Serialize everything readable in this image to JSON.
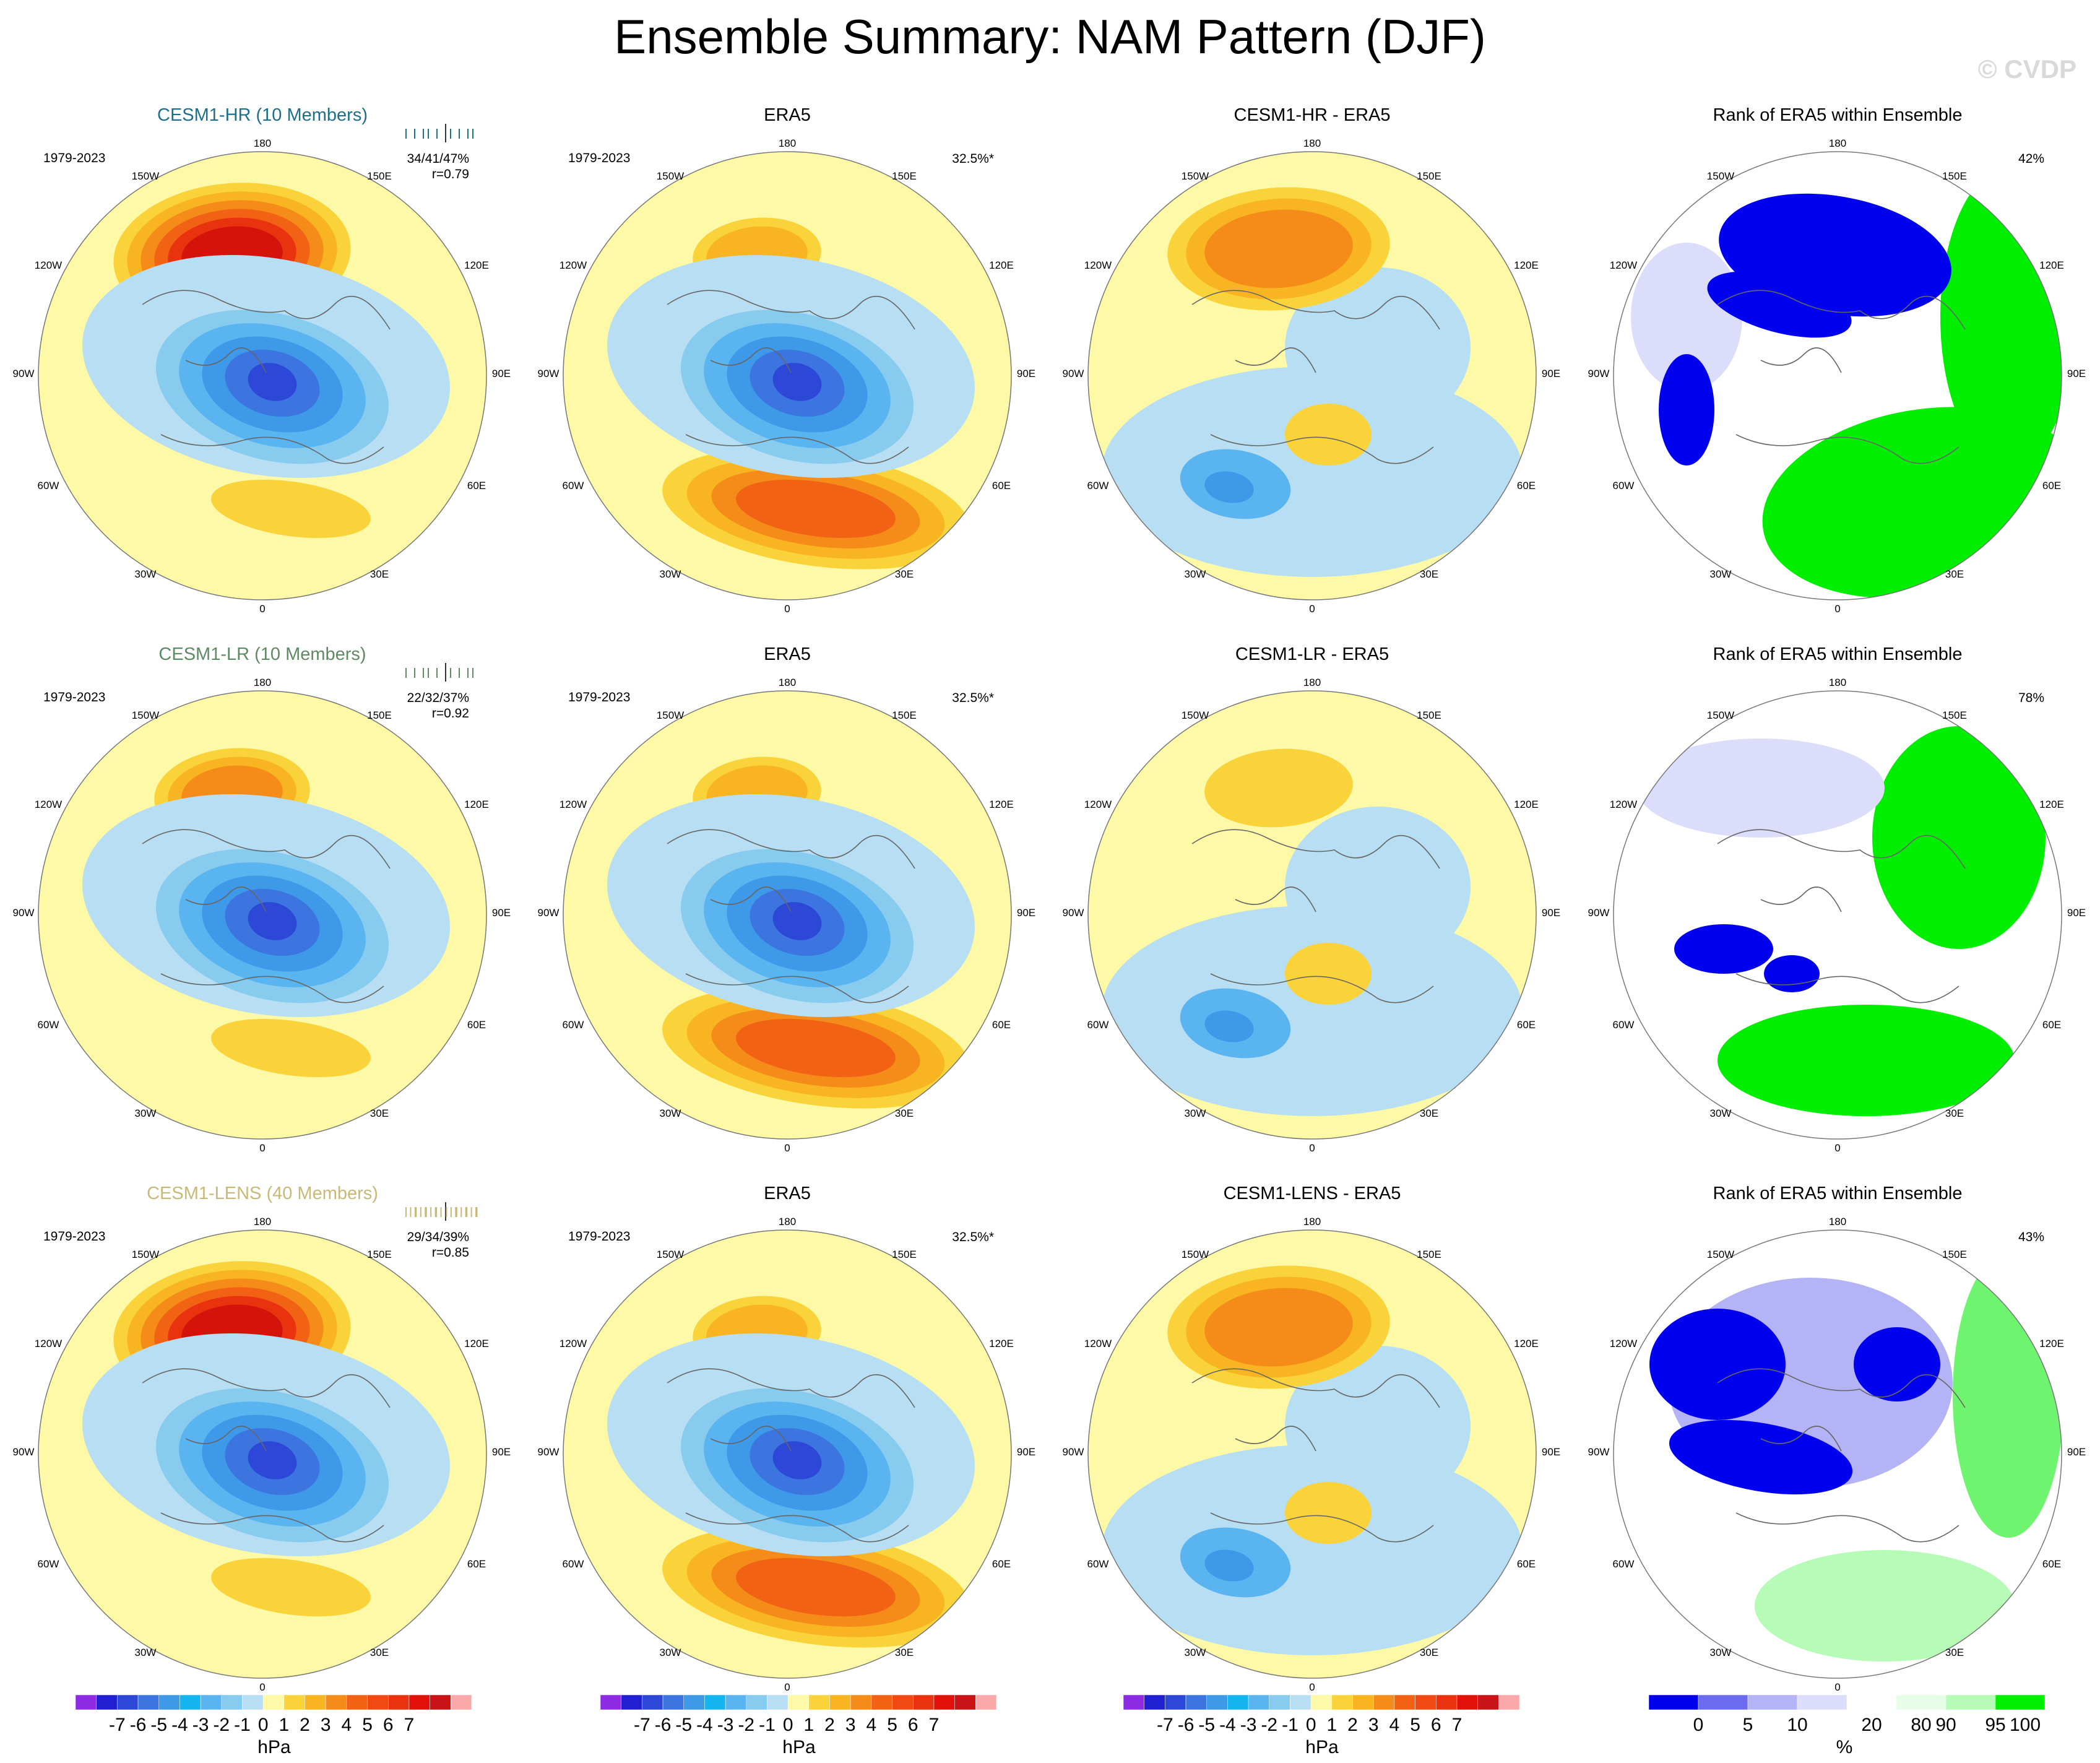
{
  "title": "Ensemble Summary: NAM Pattern (DJF)",
  "watermark": "© CVDP",
  "colors": {
    "bg_yellow": "#fdf9a6",
    "light_blue": "#b7def2",
    "blue_scale": [
      "#b7def2",
      "#87cbee",
      "#5ab4ef",
      "#3e9ae8",
      "#3c74e0",
      "#2d47d6",
      "#1f28c7"
    ],
    "warm_scale": [
      "#fdf9a6",
      "#fad33a",
      "#f8b521",
      "#f58b18",
      "#f16214",
      "#e9330f",
      "#d4140b"
    ],
    "rank_scale": [
      "#0000ee",
      "#6b6bf0",
      "#b3b3f5",
      "#dcdcfb",
      "#ffffff",
      "#e6fde6",
      "#b6fbb6",
      "#6ff46f",
      "#00ee00"
    ]
  },
  "grid_labels": {
    "top": "180",
    "bottom": "0",
    "upper_left": "150W",
    "upper_right": "150E",
    "left_upper": "120W",
    "right_upper": "120E",
    "left_mid": "90W",
    "right_mid": "90E",
    "left_lower": "60W",
    "right_lower": "60E",
    "lower_left": "30W",
    "lower_right": "30E"
  },
  "rows": [
    {
      "model": {
        "title": "CESM1-HR (10 Members)",
        "period": "1979-2023",
        "pct": "34/41/47%",
        "r": "r=0.79",
        "style": "hr"
      },
      "obs": {
        "title": "ERA5",
        "period": "1979-2023",
        "pct": "32.5%*"
      },
      "diff": {
        "title": "CESM1-HR - ERA5"
      },
      "rank": {
        "title": "Rank of ERA5 within Ensemble",
        "pct": "42%"
      }
    },
    {
      "model": {
        "title": "CESM1-LR (10 Members)",
        "period": "1979-2023",
        "pct": "22/32/37%",
        "r": "r=0.92",
        "style": "lr"
      },
      "obs": {
        "title": "ERA5",
        "period": "1979-2023",
        "pct": "32.5%*"
      },
      "diff": {
        "title": "CESM1-LR - ERA5"
      },
      "rank": {
        "title": "Rank of ERA5 within Ensemble",
        "pct": "78%"
      }
    },
    {
      "model": {
        "title": "CESM1-LENS (40 Members)",
        "period": "1979-2023",
        "pct": "29/34/39%",
        "r": "r=0.85",
        "style": "lens"
      },
      "obs": {
        "title": "ERA5",
        "period": "1979-2023",
        "pct": "32.5%*"
      },
      "diff": {
        "title": "CESM1-LENS - ERA5"
      },
      "rank": {
        "title": "Rank of ERA5 within Ensemble",
        "pct": "43%"
      }
    }
  ],
  "colorbar_hpa": {
    "colors": [
      "#8c2be2",
      "#2020d0",
      "#2d47d6",
      "#3c74e0",
      "#3e9ae8",
      "#14b4f0",
      "#5ab4ef",
      "#87cbee",
      "#b7def2",
      "#fdf9a6",
      "#fad33a",
      "#f8b521",
      "#f58b18",
      "#f16214",
      "#f04a12",
      "#e9330f",
      "#e2120b",
      "#c81416",
      "#fba8a8"
    ],
    "labels": [
      "-7",
      "-6",
      "-5",
      "-4",
      "-3",
      "-2",
      "-1",
      "0",
      "1",
      "2",
      "3",
      "4",
      "5",
      "6",
      "7"
    ],
    "units": "hPa"
  },
  "colorbar_rank": {
    "colors": [
      "#0000ee",
      "#6b6bf0",
      "#b3b3f5",
      "#dcdcfb",
      "#ffffff",
      "#e6fde6",
      "#b6fbb6",
      "#00ee00"
    ],
    "labels": [
      "0",
      "5",
      "10",
      "20",
      "80",
      "90",
      "95",
      "100"
    ],
    "units": "%"
  }
}
